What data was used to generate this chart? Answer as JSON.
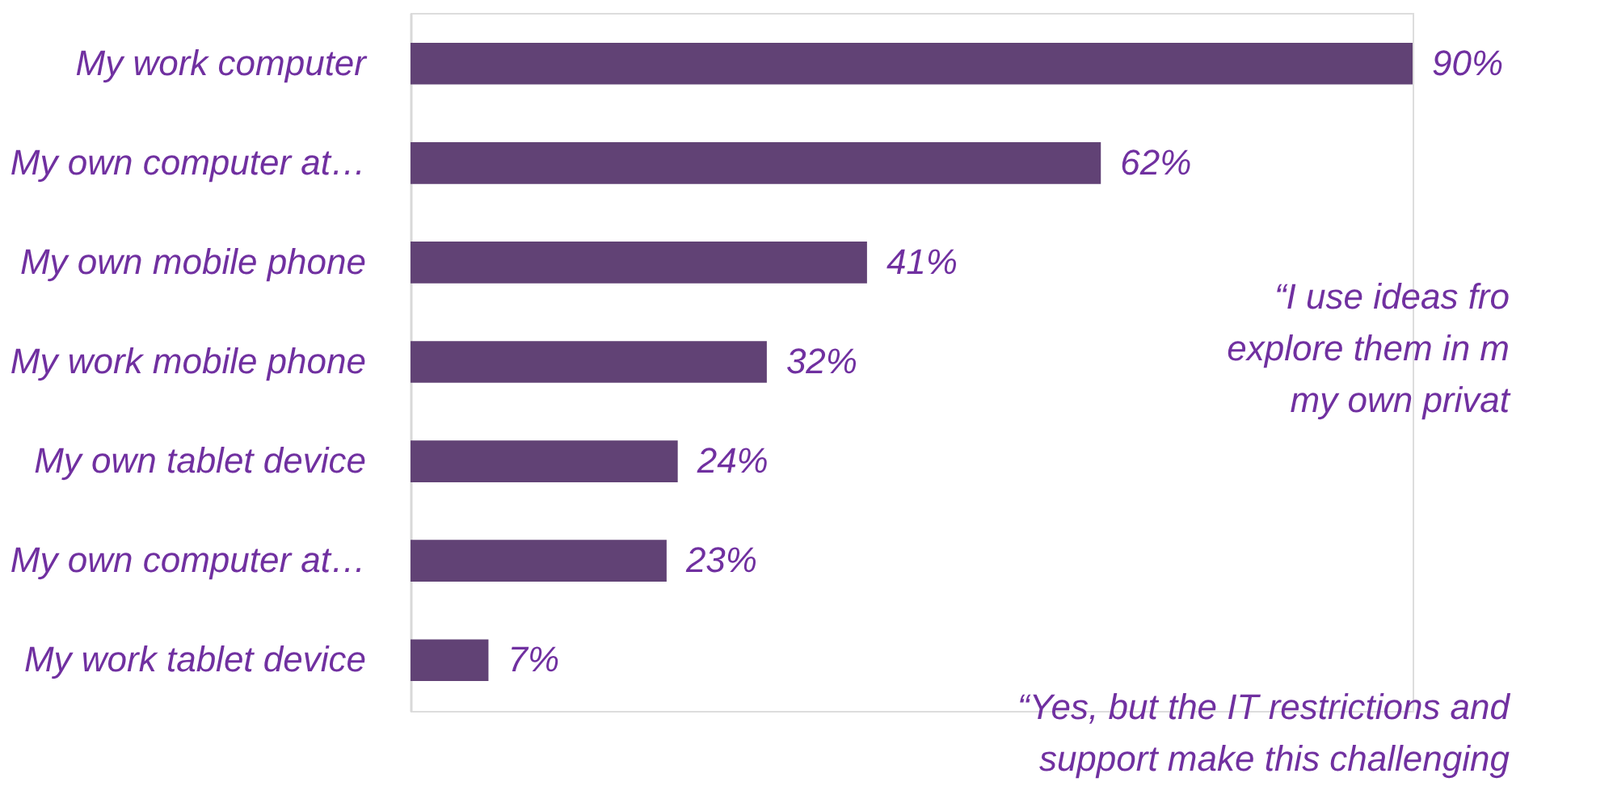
{
  "chart_data": {
    "type": "bar",
    "orientation": "horizontal",
    "categories": [
      "My work computer",
      "My own computer at…",
      "My own mobile phone",
      "My work mobile phone",
      "My own tablet device",
      "My own computer at…",
      "My work tablet device"
    ],
    "values": [
      90,
      62,
      41,
      32,
      24,
      23,
      7
    ],
    "value_labels": [
      "90%",
      "62%",
      "41%",
      "32%",
      "24%",
      "23%",
      "7%"
    ],
    "color": "#614275",
    "tick_labels": "y",
    "annotations": [
      "“I use ideas fro",
      "explore them in m",
      "my own privat",
      "“Yes, but the IT restrictions and",
      "support make this challenging"
    ]
  }
}
